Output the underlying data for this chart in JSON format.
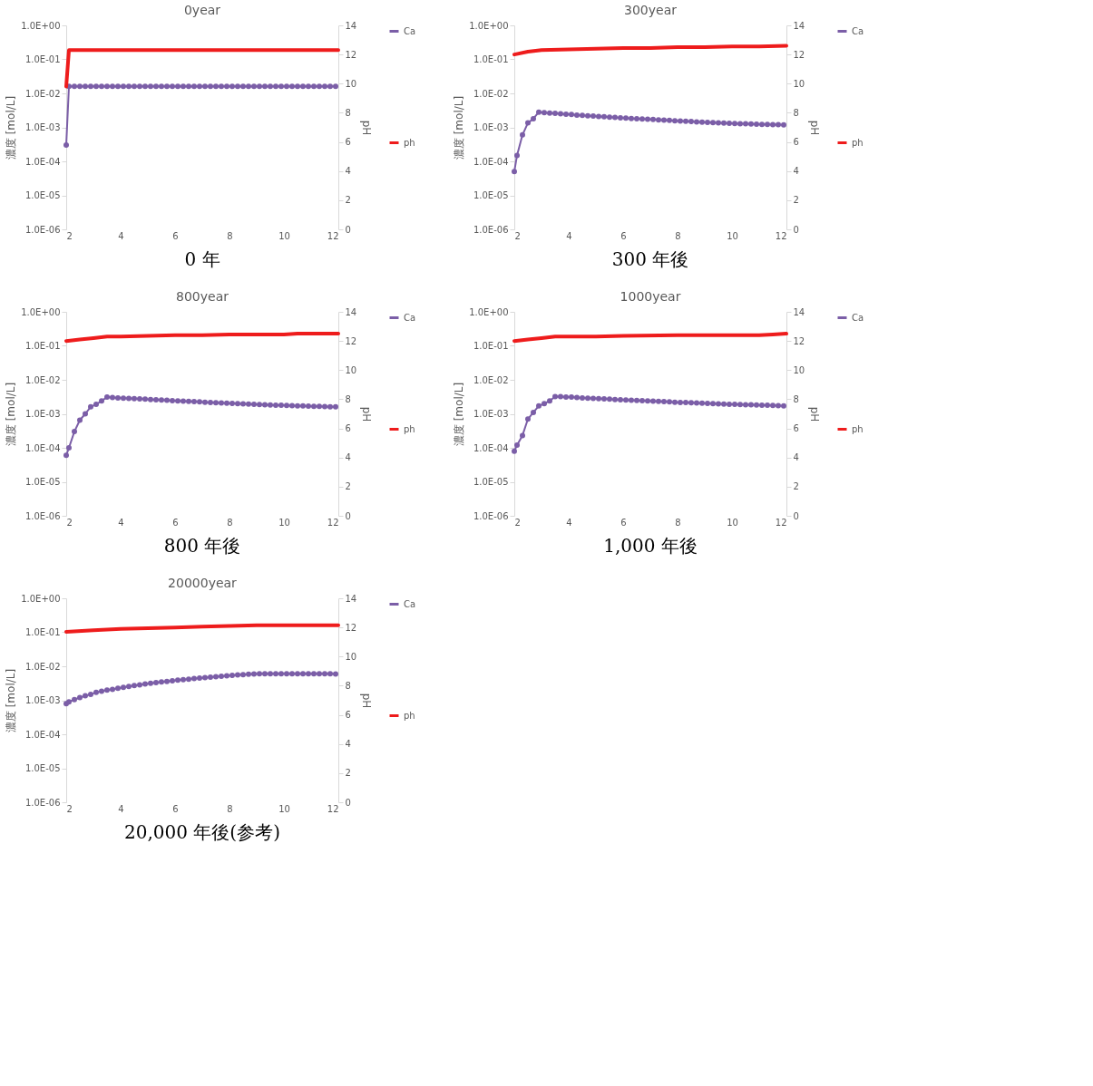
{
  "chart_data": [
    {
      "type": "line",
      "title": "0year",
      "ylabel": "濃度 [mol/L]",
      "y2label": "pH",
      "log": "y",
      "grid": false,
      "legend": "right",
      "line_style": "solid",
      "annotations": [
        "0 年"
      ],
      "xlim": [
        2,
        12
      ],
      "xticks": [
        2,
        4,
        6,
        8,
        10,
        12
      ],
      "ylim": [
        1e-06,
        1
      ],
      "yticks": [
        {
          "value": 1e-06,
          "label": "1.0E-06"
        },
        {
          "value": 1e-05,
          "label": "1.0E-05"
        },
        {
          "value": 0.0001,
          "label": "1.0E-04"
        },
        {
          "value": 0.001,
          "label": "1.0E-03"
        },
        {
          "value": 0.01,
          "label": "1.0E-02"
        },
        {
          "value": 0.1,
          "label": "1.0E-01"
        },
        {
          "value": 1,
          "label": "1.0E+00"
        }
      ],
      "y2lim": [
        0,
        14
      ],
      "y2ticks": [
        0,
        2,
        4,
        6,
        8,
        10,
        12,
        14
      ],
      "series": [
        {
          "name": "Ca",
          "color": "#7b5ea7",
          "marker": "circle",
          "x": [
            2,
            2.1,
            2.3,
            2.5,
            2.7,
            2.9,
            3.1,
            3.3,
            3.5,
            3.7,
            3.9,
            4.1,
            4.3,
            4.5,
            4.7,
            4.9,
            5.1,
            5.3,
            5.5,
            5.7,
            5.9,
            6.1,
            6.3,
            6.5,
            6.7,
            6.9,
            7.1,
            7.3,
            7.5,
            7.7,
            7.9,
            8.1,
            8.3,
            8.5,
            8.7,
            8.9,
            9.1,
            9.3,
            9.5,
            9.7,
            9.9,
            10.1,
            10.3,
            10.5,
            10.7,
            10.9,
            11.1,
            11.3,
            11.5,
            11.7,
            11.9
          ],
          "values": [
            0.0003,
            0.016,
            0.016,
            0.016,
            0.016,
            0.016,
            0.016,
            0.016,
            0.016,
            0.016,
            0.016,
            0.016,
            0.016,
            0.016,
            0.016,
            0.016,
            0.016,
            0.016,
            0.016,
            0.016,
            0.016,
            0.016,
            0.016,
            0.016,
            0.016,
            0.016,
            0.016,
            0.016,
            0.016,
            0.016,
            0.016,
            0.016,
            0.016,
            0.016,
            0.016,
            0.016,
            0.016,
            0.016,
            0.016,
            0.016,
            0.016,
            0.016,
            0.016,
            0.016,
            0.016,
            0.016,
            0.016,
            0.016,
            0.016,
            0.016,
            0.016
          ]
        },
        {
          "name": "ph",
          "color": "#ee1c1c",
          "marker": "none",
          "axis": "y2",
          "x": [
            2,
            2.1,
            4,
            6,
            8,
            10,
            12
          ],
          "values": [
            9.8,
            12.3,
            12.3,
            12.3,
            12.3,
            12.3,
            12.3
          ]
        }
      ]
    },
    {
      "type": "line",
      "title": "300year",
      "ylabel": "濃度 [mol/L]",
      "y2label": "pH",
      "log": "y",
      "grid": false,
      "legend": "right",
      "line_style": "solid",
      "annotations": [
        "300 年後"
      ],
      "xlim": [
        2,
        12
      ],
      "xticks": [
        2,
        4,
        6,
        8,
        10,
        12
      ],
      "ylim": [
        1e-06,
        1
      ],
      "yticks": [
        {
          "value": 1e-06,
          "label": "1.0E-06"
        },
        {
          "value": 1e-05,
          "label": "1.0E-05"
        },
        {
          "value": 0.0001,
          "label": "1.0E-04"
        },
        {
          "value": 0.001,
          "label": "1.0E-03"
        },
        {
          "value": 0.01,
          "label": "1.0E-02"
        },
        {
          "value": 0.1,
          "label": "1.0E-01"
        },
        {
          "value": 1,
          "label": "1.0E+00"
        }
      ],
      "y2lim": [
        0,
        14
      ],
      "y2ticks": [
        0,
        2,
        4,
        6,
        8,
        10,
        12,
        14
      ],
      "series": [
        {
          "name": "Ca",
          "color": "#7b5ea7",
          "marker": "circle",
          "x": [
            2,
            2.1,
            2.3,
            2.5,
            2.7,
            2.9,
            3.1,
            3.3,
            3.5,
            3.7,
            3.9,
            4.1,
            4.3,
            4.5,
            4.7,
            4.9,
            5.1,
            5.3,
            5.5,
            5.7,
            5.9,
            6.1,
            6.3,
            6.5,
            6.7,
            6.9,
            7.1,
            7.3,
            7.5,
            7.7,
            7.9,
            8.1,
            8.3,
            8.5,
            8.7,
            8.9,
            9.1,
            9.3,
            9.5,
            9.7,
            9.9,
            10.1,
            10.3,
            10.5,
            10.7,
            10.9,
            11.1,
            11.3,
            11.5,
            11.7,
            11.9
          ],
          "values": [
            5e-05,
            0.00015,
            0.0006,
            0.00135,
            0.0018,
            0.0028,
            0.0027,
            0.00265,
            0.0026,
            0.0025,
            0.00245,
            0.0024,
            0.0023,
            0.00225,
            0.0022,
            0.00215,
            0.0021,
            0.00205,
            0.002,
            0.00195,
            0.0019,
            0.00187,
            0.00183,
            0.0018,
            0.00177,
            0.00173,
            0.0017,
            0.00167,
            0.00163,
            0.0016,
            0.00157,
            0.00154,
            0.00151,
            0.00148,
            0.00145,
            0.00143,
            0.0014,
            0.00138,
            0.00136,
            0.00134,
            0.00132,
            0.0013,
            0.00128,
            0.00127,
            0.00125,
            0.00124,
            0.00123,
            0.00122,
            0.00121,
            0.0012,
            0.00119
          ]
        },
        {
          "name": "ph",
          "color": "#ee1c1c",
          "marker": "none",
          "axis": "y2",
          "x": [
            2,
            2.5,
            3,
            4,
            5,
            6,
            7,
            8,
            9,
            10,
            11,
            12
          ],
          "values": [
            12.0,
            12.2,
            12.3,
            12.35,
            12.4,
            12.45,
            12.45,
            12.5,
            12.5,
            12.55,
            12.55,
            12.6
          ]
        }
      ]
    },
    {
      "type": "line",
      "title": "800year",
      "ylabel": "濃度 [mol/L]",
      "y2label": "pH",
      "log": "y",
      "grid": false,
      "legend": "right",
      "line_style": "solid",
      "annotations": [
        "800 年後"
      ],
      "xlim": [
        2,
        12
      ],
      "xticks": [
        2,
        4,
        6,
        8,
        10,
        12
      ],
      "ylim": [
        1e-06,
        1
      ],
      "yticks": [
        {
          "value": 1e-06,
          "label": "1.0E-06"
        },
        {
          "value": 1e-05,
          "label": "1.0E-05"
        },
        {
          "value": 0.0001,
          "label": "1.0E-04"
        },
        {
          "value": 0.001,
          "label": "1.0E-03"
        },
        {
          "value": 0.01,
          "label": "1.0E-02"
        },
        {
          "value": 0.1,
          "label": "1.0E-01"
        },
        {
          "value": 1,
          "label": "1.0E+00"
        }
      ],
      "y2lim": [
        0,
        14
      ],
      "y2ticks": [
        0,
        2,
        4,
        6,
        8,
        10,
        12,
        14
      ],
      "series": [
        {
          "name": "Ca",
          "color": "#7b5ea7",
          "marker": "circle",
          "x": [
            2,
            2.1,
            2.3,
            2.5,
            2.7,
            2.9,
            3.1,
            3.3,
            3.5,
            3.7,
            3.9,
            4.1,
            4.3,
            4.5,
            4.7,
            4.9,
            5.1,
            5.3,
            5.5,
            5.7,
            5.9,
            6.1,
            6.3,
            6.5,
            6.7,
            6.9,
            7.1,
            7.3,
            7.5,
            7.7,
            7.9,
            8.1,
            8.3,
            8.5,
            8.7,
            8.9,
            9.1,
            9.3,
            9.5,
            9.7,
            9.9,
            10.1,
            10.3,
            10.5,
            10.7,
            10.9,
            11.1,
            11.3,
            11.5,
            11.7,
            11.9
          ],
          "values": [
            6e-05,
            0.0001,
            0.0003,
            0.00065,
            0.001,
            0.0016,
            0.0019,
            0.0024,
            0.0031,
            0.003,
            0.00295,
            0.0029,
            0.00285,
            0.0028,
            0.00275,
            0.0027,
            0.00265,
            0.0026,
            0.00255,
            0.0025,
            0.00245,
            0.0024,
            0.00237,
            0.00233,
            0.0023,
            0.00225,
            0.0022,
            0.00217,
            0.00213,
            0.0021,
            0.00206,
            0.00203,
            0.002,
            0.00197,
            0.00194,
            0.00191,
            0.00188,
            0.00185,
            0.00183,
            0.0018,
            0.00178,
            0.00176,
            0.00174,
            0.00172,
            0.0017,
            0.00168,
            0.00166,
            0.00165,
            0.00163,
            0.00162,
            0.0016
          ]
        },
        {
          "name": "ph",
          "color": "#ee1c1c",
          "marker": "none",
          "axis": "y2",
          "x": [
            2,
            2.5,
            3,
            3.5,
            4,
            5,
            6,
            7,
            8,
            9,
            10,
            10.5,
            12
          ],
          "values": [
            12.0,
            12.1,
            12.2,
            12.3,
            12.3,
            12.35,
            12.4,
            12.4,
            12.45,
            12.45,
            12.45,
            12.5,
            12.5
          ]
        }
      ]
    },
    {
      "type": "line",
      "title": "1000year",
      "ylabel": "濃度 [mol/L]",
      "y2label": "pH",
      "log": "y",
      "grid": false,
      "legend": "right",
      "line_style": "solid",
      "annotations": [
        "1,000 年後"
      ],
      "xlim": [
        2,
        12
      ],
      "xticks": [
        2,
        4,
        6,
        8,
        10,
        12
      ],
      "ylim": [
        1e-06,
        1
      ],
      "yticks": [
        {
          "value": 1e-06,
          "label": "1.0E-06"
        },
        {
          "value": 1e-05,
          "label": "1.0E-05"
        },
        {
          "value": 0.0001,
          "label": "1.0E-04"
        },
        {
          "value": 0.001,
          "label": "1.0E-03"
        },
        {
          "value": 0.01,
          "label": "1.0E-02"
        },
        {
          "value": 0.1,
          "label": "1.0E-01"
        },
        {
          "value": 1,
          "label": "1.0E+00"
        }
      ],
      "y2lim": [
        0,
        14
      ],
      "y2ticks": [
        0,
        2,
        4,
        6,
        8,
        10,
        12,
        14
      ],
      "series": [
        {
          "name": "Ca",
          "color": "#7b5ea7",
          "marker": "circle",
          "x": [
            2,
            2.1,
            2.3,
            2.5,
            2.7,
            2.9,
            3.1,
            3.3,
            3.5,
            3.7,
            3.9,
            4.1,
            4.3,
            4.5,
            4.7,
            4.9,
            5.1,
            5.3,
            5.5,
            5.7,
            5.9,
            6.1,
            6.3,
            6.5,
            6.7,
            6.9,
            7.1,
            7.3,
            7.5,
            7.7,
            7.9,
            8.1,
            8.3,
            8.5,
            8.7,
            8.9,
            9.1,
            9.3,
            9.5,
            9.7,
            9.9,
            10.1,
            10.3,
            10.5,
            10.7,
            10.9,
            11.1,
            11.3,
            11.5,
            11.7,
            11.9
          ],
          "values": [
            8e-05,
            0.00012,
            0.00023,
            0.0007,
            0.0011,
            0.0017,
            0.002,
            0.0024,
            0.0032,
            0.0032,
            0.0031,
            0.0031,
            0.003,
            0.00295,
            0.0029,
            0.00285,
            0.0028,
            0.00275,
            0.0027,
            0.00265,
            0.0026,
            0.00255,
            0.0025,
            0.00247,
            0.00243,
            0.0024,
            0.00236,
            0.00232,
            0.00228,
            0.00224,
            0.0022,
            0.00217,
            0.00214,
            0.00211,
            0.00208,
            0.00205,
            0.00202,
            0.002,
            0.00197,
            0.00194,
            0.00192,
            0.0019,
            0.00188,
            0.00186,
            0.00184,
            0.00182,
            0.0018,
            0.00178,
            0.00176,
            0.00174,
            0.0017
          ]
        },
        {
          "name": "ph",
          "color": "#ee1c1c",
          "marker": "none",
          "axis": "y2",
          "x": [
            2,
            2.5,
            3,
            3.5,
            5,
            6,
            8,
            10,
            11,
            11.5,
            12
          ],
          "values": [
            12.0,
            12.1,
            12.2,
            12.3,
            12.3,
            12.35,
            12.4,
            12.4,
            12.4,
            12.45,
            12.5
          ]
        }
      ]
    },
    {
      "type": "line",
      "title": "20000year",
      "ylabel": "濃度 [mol/L]",
      "y2label": "pH",
      "log": "y",
      "grid": false,
      "legend": "right",
      "line_style": "solid",
      "annotations": [
        "20,000 年後(参考)"
      ],
      "xlim": [
        2,
        12
      ],
      "xticks": [
        2,
        4,
        6,
        8,
        10,
        12
      ],
      "ylim": [
        1e-06,
        1
      ],
      "yticks": [
        {
          "value": 1e-06,
          "label": "1.0E-06"
        },
        {
          "value": 1e-05,
          "label": "1.0E-05"
        },
        {
          "value": 0.0001,
          "label": "1.0E-04"
        },
        {
          "value": 0.001,
          "label": "1.0E-03"
        },
        {
          "value": 0.01,
          "label": "1.0E-02"
        },
        {
          "value": 0.1,
          "label": "1.0E-01"
        },
        {
          "value": 1,
          "label": "1.0E+00"
        }
      ],
      "y2lim": [
        0,
        14
      ],
      "y2ticks": [
        0,
        2,
        4,
        6,
        8,
        10,
        12,
        14
      ],
      "series": [
        {
          "name": "Ca",
          "color": "#7b5ea7",
          "marker": "circle",
          "x": [
            2,
            2.1,
            2.3,
            2.5,
            2.7,
            2.9,
            3.1,
            3.3,
            3.5,
            3.7,
            3.9,
            4.1,
            4.3,
            4.5,
            4.7,
            4.9,
            5.1,
            5.3,
            5.5,
            5.7,
            5.9,
            6.1,
            6.3,
            6.5,
            6.7,
            6.9,
            7.1,
            7.3,
            7.5,
            7.7,
            7.9,
            8.1,
            8.3,
            8.5,
            8.7,
            8.9,
            9.1,
            9.3,
            9.5,
            9.7,
            9.9,
            10.1,
            10.3,
            10.5,
            10.7,
            10.9,
            11.1,
            11.3,
            11.5,
            11.7,
            11.9
          ],
          "values": [
            0.0008,
            0.0009,
            0.00105,
            0.0012,
            0.00135,
            0.0015,
            0.0017,
            0.00185,
            0.002,
            0.0021,
            0.00225,
            0.0024,
            0.00255,
            0.0027,
            0.00285,
            0.003,
            0.00315,
            0.0033,
            0.00345,
            0.0036,
            0.00375,
            0.0039,
            0.00405,
            0.0042,
            0.00435,
            0.0045,
            0.00465,
            0.0048,
            0.00495,
            0.0051,
            0.00525,
            0.0054,
            0.00555,
            0.0057,
            0.0058,
            0.0059,
            0.006,
            0.006,
            0.006,
            0.006,
            0.006,
            0.006,
            0.006,
            0.006,
            0.006,
            0.006,
            0.006,
            0.006,
            0.006,
            0.006,
            0.0059
          ]
        },
        {
          "name": "ph",
          "color": "#ee1c1c",
          "marker": "none",
          "axis": "y2",
          "x": [
            2,
            3,
            4,
            5,
            6,
            7,
            8,
            9,
            10,
            12
          ],
          "values": [
            11.7,
            11.8,
            11.9,
            11.95,
            12.0,
            12.05,
            12.1,
            12.15,
            12.15,
            12.15
          ]
        }
      ]
    }
  ]
}
